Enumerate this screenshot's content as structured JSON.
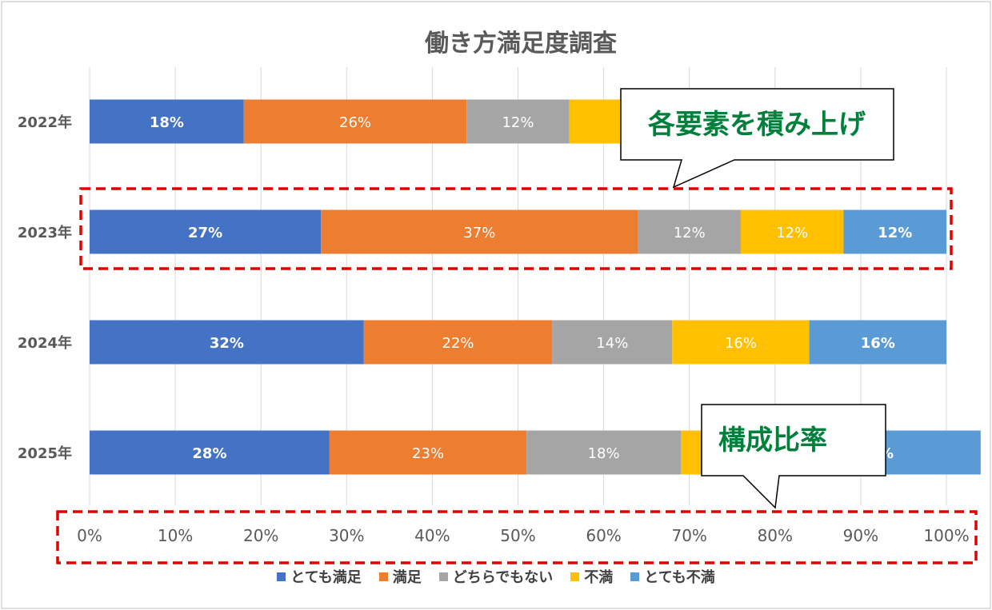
{
  "chart_data": {
    "type": "bar",
    "orientation": "horizontal-stacked-100",
    "title": "働き方満足度調査",
    "categories": [
      "2022年",
      "2023年",
      "2024年",
      "2025年"
    ],
    "series": [
      {
        "name": "とても満足",
        "color": "#4472C4",
        "values": [
          18,
          27,
          32,
          28
        ],
        "labels": [
          "18%",
          "27%",
          "32%",
          "28%"
        ]
      },
      {
        "name": "満足",
        "color": "#ED7D31",
        "values": [
          26,
          37,
          22,
          23
        ],
        "labels": [
          "26%",
          "37%",
          "22%",
          "23%"
        ]
      },
      {
        "name": "どちらでもない",
        "color": "#A5A5A5",
        "values": [
          12,
          12,
          14,
          18
        ],
        "labels": [
          "12%",
          "12%",
          "14%",
          "18%"
        ]
      },
      {
        "name": "不満",
        "color": "#FFC000",
        "values": [
          23,
          12,
          16,
          13
        ],
        "labels": [
          "",
          "12%",
          "16%",
          ""
        ]
      },
      {
        "name": "とても不満",
        "color": "#5B9BD5",
        "values": [
          6,
          12,
          16,
          22
        ],
        "labels": [
          "",
          "12%",
          "16%",
          "%"
        ]
      }
    ],
    "xlim": [
      0,
      100
    ],
    "xticks": [
      "0%",
      "10%",
      "20%",
      "30%",
      "40%",
      "50%",
      "60%",
      "70%",
      "80%",
      "90%",
      "100%"
    ],
    "grid": true,
    "legend_position": "bottom"
  },
  "annotations": {
    "stack_callout": "各要素を積み上げ",
    "ratio_callout": "構成比率",
    "text_color": "#00803A"
  }
}
